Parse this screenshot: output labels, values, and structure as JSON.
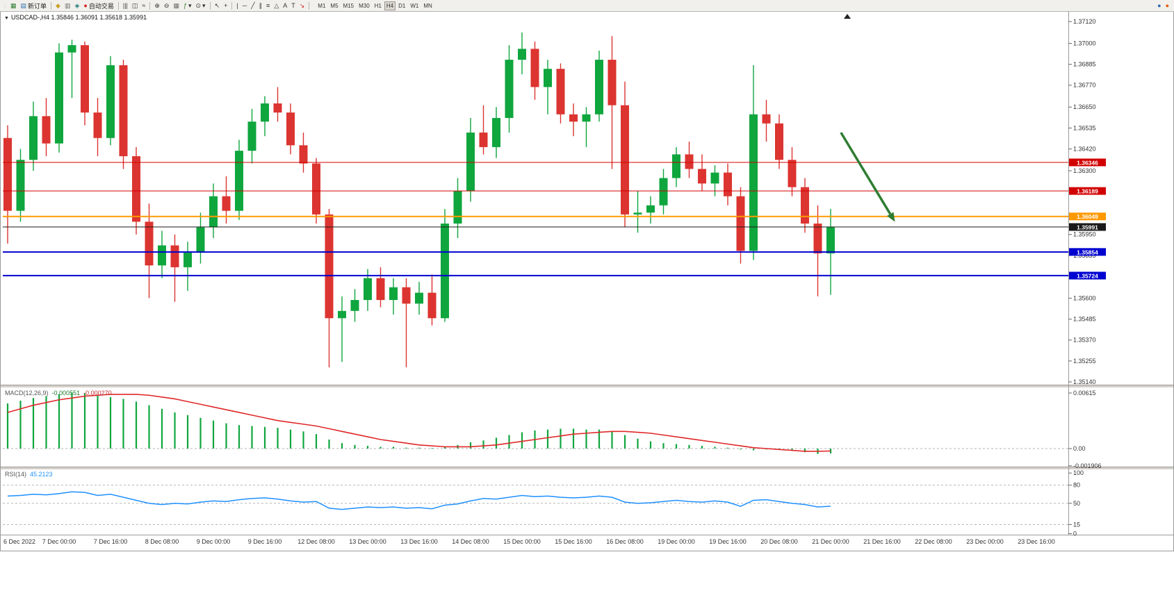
{
  "toolbar": {
    "new_order": "新订单",
    "autotrade": "自动交易",
    "timeframes": [
      "M1",
      "M5",
      "M15",
      "M30",
      "H1",
      "H4",
      "D1",
      "W1",
      "MN"
    ],
    "active_timeframe": "H4"
  },
  "icons": {
    "grip": "⋮",
    "new_chart": "▦",
    "new_order": "▤",
    "market_watch": "◆",
    "data_window": "▥",
    "navigator": "◈",
    "autotrade_dot": "●",
    "bars": "|||",
    "candles": "◫",
    "line_chart": "≈",
    "zoom_in": "⊕",
    "zoom_out": "⊖",
    "tile": "▦",
    "indicators": "ƒ",
    "period": "⊙",
    "cursor": "↖",
    "crosshair": "+",
    "vertical_line": "|",
    "trendline": "╱",
    "channel": "∥",
    "horizontal_line": "─",
    "fibonacci": "≡",
    "shapes": "△",
    "text": "A",
    "label": "T",
    "arrow": "↘",
    "dropdown": "▾",
    "account": "●",
    "alert": "●",
    "collapse": "▼"
  },
  "chart": {
    "title": "USDCAD-,H4 1.35846 1.36091 1.35618 1.35991",
    "symbol": "USDCAD-",
    "period": "H4",
    "ohlc": {
      "open": "1.35846",
      "high": "1.36091",
      "low": "1.35618",
      "close": "1.35991"
    }
  },
  "indicators": {
    "macd": {
      "label": "MACD(12,26,9)",
      "value_main": "-0.000551",
      "value_signal": "-0.000270",
      "axis": [
        "0.00615",
        "0.00",
        "-0.001906"
      ]
    },
    "rsi": {
      "label": "RSI(14)",
      "value": "45.2123",
      "axis": [
        "100",
        "80",
        "50",
        "15",
        "0"
      ],
      "levels": [
        80,
        50,
        15
      ]
    }
  },
  "chart_data": {
    "type": "candlestick",
    "symbol": "USDCAD",
    "timeframe": "H4",
    "y_axis": {
      "min": 1.3514,
      "max": 1.3712,
      "ticks": [
        "1.37120",
        "1.37000",
        "1.36885",
        "1.36770",
        "1.36650",
        "1.36535",
        "1.36420",
        "1.36300",
        "1.35950",
        "1.35835",
        "1.35600",
        "1.35485",
        "1.35370",
        "1.35255",
        "1.35140"
      ]
    },
    "x_axis": {
      "labels": [
        "6 Dec 2022",
        "7 Dec 00:00",
        "7 Dec 16:00",
        "8 Dec 08:00",
        "9 Dec 00:00",
        "9 Dec 16:00",
        "12 Dec 08:00",
        "13 Dec 00:00",
        "13 Dec 16:00",
        "14 Dec 08:00",
        "15 Dec 00:00",
        "15 Dec 16:00",
        "16 Dec 08:00",
        "19 Dec 00:00",
        "19 Dec 16:00",
        "20 Dec 08:00",
        "21 Dec 00:00",
        "21 Dec 16:00",
        "22 Dec 08:00",
        "23 Dec 00:00",
        "23 Dec 16:00"
      ]
    },
    "candles": [
      [
        1.3648,
        1.3655,
        1.359,
        1.3608
      ],
      [
        1.3608,
        1.3642,
        1.3602,
        1.3636
      ],
      [
        1.3636,
        1.3668,
        1.363,
        1.366
      ],
      [
        1.366,
        1.367,
        1.3638,
        1.3645
      ],
      [
        1.3645,
        1.37,
        1.364,
        1.3695
      ],
      [
        1.3695,
        1.3702,
        1.367,
        1.3699
      ],
      [
        1.3699,
        1.3701,
        1.3655,
        1.3662
      ],
      [
        1.3662,
        1.367,
        1.3638,
        1.3648
      ],
      [
        1.3648,
        1.3693,
        1.3644,
        1.3688
      ],
      [
        1.3688,
        1.3691,
        1.3631,
        1.3638
      ],
      [
        1.3638,
        1.3643,
        1.3595,
        1.3602
      ],
      [
        1.3602,
        1.3612,
        1.356,
        1.3578
      ],
      [
        1.3578,
        1.3597,
        1.3571,
        1.3589
      ],
      [
        1.3589,
        1.3595,
        1.3558,
        1.3577
      ],
      [
        1.3577,
        1.3591,
        1.3564,
        1.3585
      ],
      [
        1.3585,
        1.3607,
        1.3579,
        1.3599
      ],
      [
        1.3599,
        1.3623,
        1.3593,
        1.3616
      ],
      [
        1.3616,
        1.3627,
        1.3601,
        1.3608
      ],
      [
        1.3608,
        1.3647,
        1.3603,
        1.3641
      ],
      [
        1.3641,
        1.3664,
        1.3634,
        1.3657
      ],
      [
        1.3657,
        1.3671,
        1.3649,
        1.3667
      ],
      [
        1.3667,
        1.3676,
        1.3657,
        1.3662
      ],
      [
        1.3662,
        1.3667,
        1.3639,
        1.3644
      ],
      [
        1.3644,
        1.3651,
        1.3629,
        1.3634
      ],
      [
        1.3634,
        1.3637,
        1.3601,
        1.3606
      ],
      [
        1.3606,
        1.3609,
        1.3522,
        1.3549
      ],
      [
        1.3549,
        1.3561,
        1.3525,
        1.3553
      ],
      [
        1.3553,
        1.3565,
        1.3547,
        1.3559
      ],
      [
        1.3559,
        1.3576,
        1.3553,
        1.3571
      ],
      [
        1.3571,
        1.3577,
        1.3555,
        1.3559
      ],
      [
        1.3559,
        1.3571,
        1.3551,
        1.3566
      ],
      [
        1.3566,
        1.3571,
        1.3522,
        1.3557
      ],
      [
        1.3557,
        1.3569,
        1.3551,
        1.3563
      ],
      [
        1.3563,
        1.3573,
        1.3545,
        1.3549
      ],
      [
        1.3549,
        1.3609,
        1.3547,
        1.3601
      ],
      [
        1.3601,
        1.3626,
        1.3593,
        1.3619
      ],
      [
        1.3619,
        1.3659,
        1.3613,
        1.3651
      ],
      [
        1.3651,
        1.3666,
        1.3639,
        1.3643
      ],
      [
        1.3643,
        1.3665,
        1.3637,
        1.3659
      ],
      [
        1.3659,
        1.3699,
        1.3651,
        1.3691
      ],
      [
        1.3691,
        1.3706,
        1.3683,
        1.3697
      ],
      [
        1.3697,
        1.3701,
        1.3669,
        1.3676
      ],
      [
        1.3676,
        1.3691,
        1.3661,
        1.3686
      ],
      [
        1.3686,
        1.3689,
        1.3656,
        1.3661
      ],
      [
        1.3661,
        1.3667,
        1.3649,
        1.3657
      ],
      [
        1.3657,
        1.3665,
        1.3643,
        1.3661
      ],
      [
        1.3661,
        1.3696,
        1.3657,
        1.3691
      ],
      [
        1.3691,
        1.3704,
        1.3631,
        1.3666
      ],
      [
        1.3666,
        1.3679,
        1.3599,
        1.3606
      ],
      [
        1.3606,
        1.3619,
        1.3596,
        1.3607
      ],
      [
        1.3607,
        1.3616,
        1.3601,
        1.3611
      ],
      [
        1.3611,
        1.3631,
        1.3606,
        1.3626
      ],
      [
        1.3626,
        1.3643,
        1.3621,
        1.3639
      ],
      [
        1.3639,
        1.3646,
        1.3626,
        1.3631
      ],
      [
        1.3631,
        1.3639,
        1.3619,
        1.3623
      ],
      [
        1.3623,
        1.3633,
        1.3616,
        1.3629
      ],
      [
        1.3629,
        1.3634,
        1.3611,
        1.3616
      ],
      [
        1.3616,
        1.3621,
        1.3579,
        1.3586
      ],
      [
        1.3586,
        1.3688,
        1.3581,
        1.3661
      ],
      [
        1.3661,
        1.3669,
        1.3646,
        1.3656
      ],
      [
        1.3656,
        1.3661,
        1.3631,
        1.3636
      ],
      [
        1.3636,
        1.3643,
        1.3616,
        1.3621
      ],
      [
        1.3621,
        1.3626,
        1.3596,
        1.3601
      ],
      [
        1.3601,
        1.3611,
        1.3561,
        1.35846
      ],
      [
        1.35846,
        1.36091,
        1.35618,
        1.35991
      ]
    ],
    "levels": [
      {
        "price": 1.36346,
        "label": "1.36346",
        "color": "#d20000",
        "width": 1,
        "name": "resistance-line-1"
      },
      {
        "price": 1.36189,
        "label": "1.36189",
        "color": "#d20000",
        "width": 1,
        "name": "resistance-line-2"
      },
      {
        "price": 1.36049,
        "label": "1.36049",
        "color": "#ff9900",
        "width": 2,
        "name": "pivot-line"
      },
      {
        "price": 1.35991,
        "label": "1.35991",
        "color": "#1a1a1a",
        "width": 1,
        "name": "current-price-line"
      },
      {
        "price": 1.35854,
        "label": "1.35854",
        "color": "#0000d0",
        "width": 2,
        "name": "support-line-1"
      },
      {
        "price": 1.35724,
        "label": "1.35724",
        "color": "#0000d0",
        "width": 2,
        "name": "support-line-2"
      }
    ],
    "current_price": {
      "price": 1.35991,
      "label": "1.35991"
    },
    "annotations": [
      {
        "type": "arrow",
        "color": "#2f7d32",
        "from_x_index": 64.8,
        "from_price": 1.3651,
        "to_x_index": 69.0,
        "to_price": 1.3602
      }
    ],
    "macd": {
      "scale_max": 0.00615,
      "scale_min": -0.001906,
      "histogram": [
        0.005,
        0.0053,
        0.0056,
        0.0058,
        0.006,
        0.0062,
        0.0061,
        0.0059,
        0.0057,
        0.0055,
        0.0052,
        0.0048,
        0.0044,
        0.004,
        0.0037,
        0.0034,
        0.0031,
        0.0028,
        0.0026,
        0.0025,
        0.0024,
        0.0023,
        0.0021,
        0.0019,
        0.0016,
        0.001,
        0.0006,
        0.0004,
        0.0003,
        0.0002,
        0.0002,
        0.0001,
        0.0001,
        0.0,
        0.0002,
        0.0004,
        0.0007,
        0.0009,
        0.0012,
        0.0015,
        0.0018,
        0.002,
        0.0021,
        0.0022,
        0.0022,
        0.0021,
        0.0021,
        0.0019,
        0.0015,
        0.0011,
        0.0008,
        0.0006,
        0.0005,
        0.0004,
        0.0003,
        0.0002,
        0.0001,
        -0.0001,
        -0.0002,
        -0.0001,
        -0.0001,
        -0.0002,
        -0.0004,
        -0.0006,
        -0.000551
      ],
      "signal": [
        0.004,
        0.0044,
        0.0048,
        0.0051,
        0.0054,
        0.0056,
        0.0058,
        0.0059,
        0.006,
        0.006,
        0.006,
        0.0059,
        0.0057,
        0.0055,
        0.0052,
        0.0049,
        0.0046,
        0.0043,
        0.004,
        0.0037,
        0.0034,
        0.0031,
        0.0029,
        0.0027,
        0.0025,
        0.0022,
        0.0019,
        0.0016,
        0.0013,
        0.001,
        0.0008,
        0.0006,
        0.0004,
        0.0003,
        0.0002,
        0.0002,
        0.0002,
        0.0003,
        0.0004,
        0.0006,
        0.0008,
        0.001,
        0.0012,
        0.0014,
        0.0016,
        0.0017,
        0.0018,
        0.0019,
        0.0019,
        0.0018,
        0.0017,
        0.0015,
        0.0013,
        0.0011,
        0.0009,
        0.0007,
        0.0005,
        0.0003,
        0.0001,
        0.0,
        -0.0001,
        -0.0002,
        -0.0003,
        -0.0003,
        -0.00027
      ]
    },
    "rsi": {
      "values": [
        62,
        63,
        65,
        64,
        66,
        69,
        68,
        63,
        65,
        60,
        55,
        50,
        48,
        50,
        49,
        52,
        54,
        53,
        56,
        58,
        59,
        57,
        54,
        52,
        53,
        42,
        40,
        42,
        44,
        43,
        44,
        42,
        43,
        41,
        47,
        49,
        54,
        58,
        57,
        60,
        63,
        61,
        62,
        60,
        59,
        60,
        62,
        60,
        52,
        50,
        51,
        53,
        55,
        53,
        52,
        54,
        52,
        45,
        55,
        56,
        53,
        50,
        48,
        44,
        45.2
      ]
    }
  }
}
